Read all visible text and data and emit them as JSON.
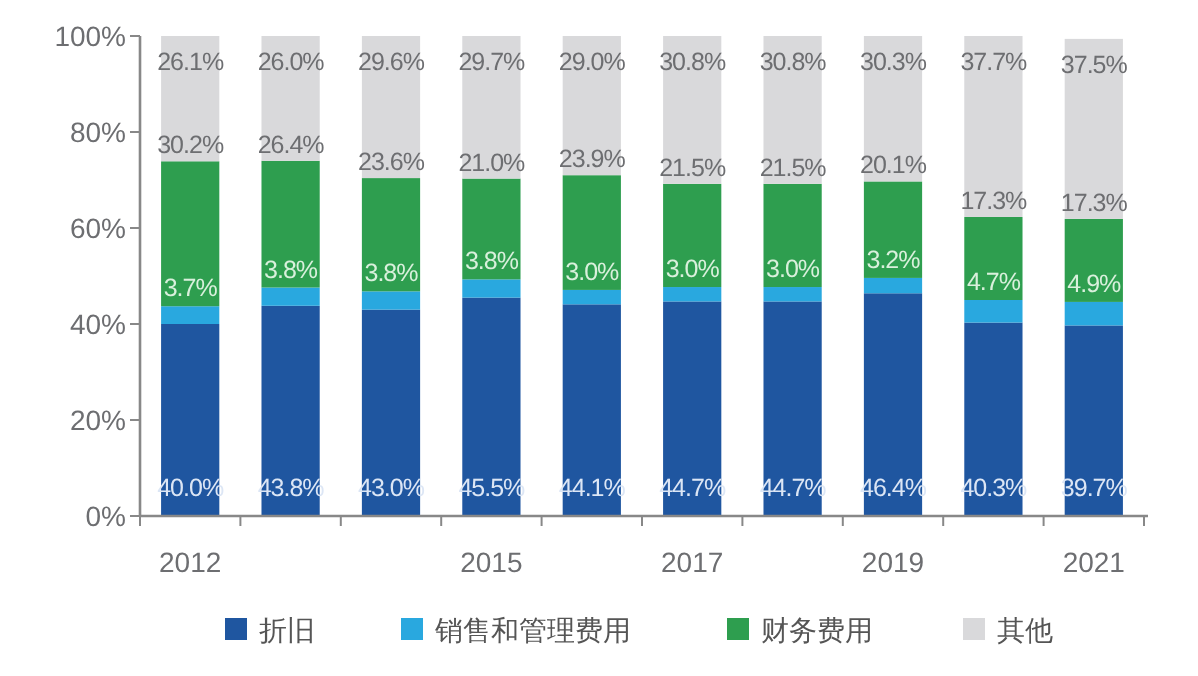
{
  "chart_data": {
    "type": "bar",
    "stacked": true,
    "legend": "bottom",
    "grid": false,
    "categories": [
      "2012",
      null,
      null,
      "2015",
      null,
      "2017",
      null,
      "2019",
      null,
      "2021"
    ],
    "ylim": [
      0,
      100
    ],
    "yticks": [
      {
        "value": 0,
        "label": "0%"
      },
      {
        "value": 20,
        "label": "20%"
      },
      {
        "value": 40,
        "label": "40%"
      },
      {
        "value": 60,
        "label": "60%"
      },
      {
        "value": 80,
        "label": "80%"
      },
      {
        "value": 100,
        "label": "100%"
      }
    ],
    "series": [
      {
        "name": "折旧",
        "color": "#1f56a0",
        "values": [
          40.0,
          43.8,
          43.0,
          45.5,
          44.1,
          44.7,
          44.7,
          46.4,
          40.3,
          39.7
        ],
        "value_labels": [
          "40.0%",
          "43.8%",
          "43.0%",
          "45.5%",
          "44.1%",
          "44.7%",
          "44.7%",
          "46.4%",
          "40.3%",
          "39.7%"
        ]
      },
      {
        "name": "销售和管理费用",
        "color": "#29a8df",
        "values": [
          3.7,
          3.8,
          3.8,
          3.8,
          3.0,
          3.0,
          3.0,
          3.2,
          4.7,
          4.9
        ],
        "value_labels": [
          "3.7%",
          "3.8%",
          "3.8%",
          "3.8%",
          "3.0%",
          "3.0%",
          "3.0%",
          "3.2%",
          "4.7%",
          "4.9%"
        ]
      },
      {
        "name": "财务费用",
        "color": "#2e9e4f",
        "values": [
          30.2,
          26.4,
          23.6,
          21.0,
          23.9,
          21.5,
          21.5,
          20.1,
          17.3,
          17.3
        ],
        "value_labels": [
          "30.2%",
          "26.4%",
          "23.6%",
          "21.0%",
          "23.9%",
          "21.5%",
          "21.5%",
          "20.1%",
          "17.3%",
          "17.3%"
        ]
      },
      {
        "name": "其他",
        "color": "#d9d9db",
        "values": [
          26.1,
          26.0,
          29.6,
          29.7,
          29.0,
          30.8,
          30.8,
          30.3,
          37.7,
          37.5
        ],
        "value_labels": [
          "26.1%",
          "26.0%",
          "29.6%",
          "29.7%",
          "29.0%",
          "30.8%",
          "30.8%",
          "30.3%",
          "37.7%",
          "37.5%"
        ]
      }
    ]
  }
}
